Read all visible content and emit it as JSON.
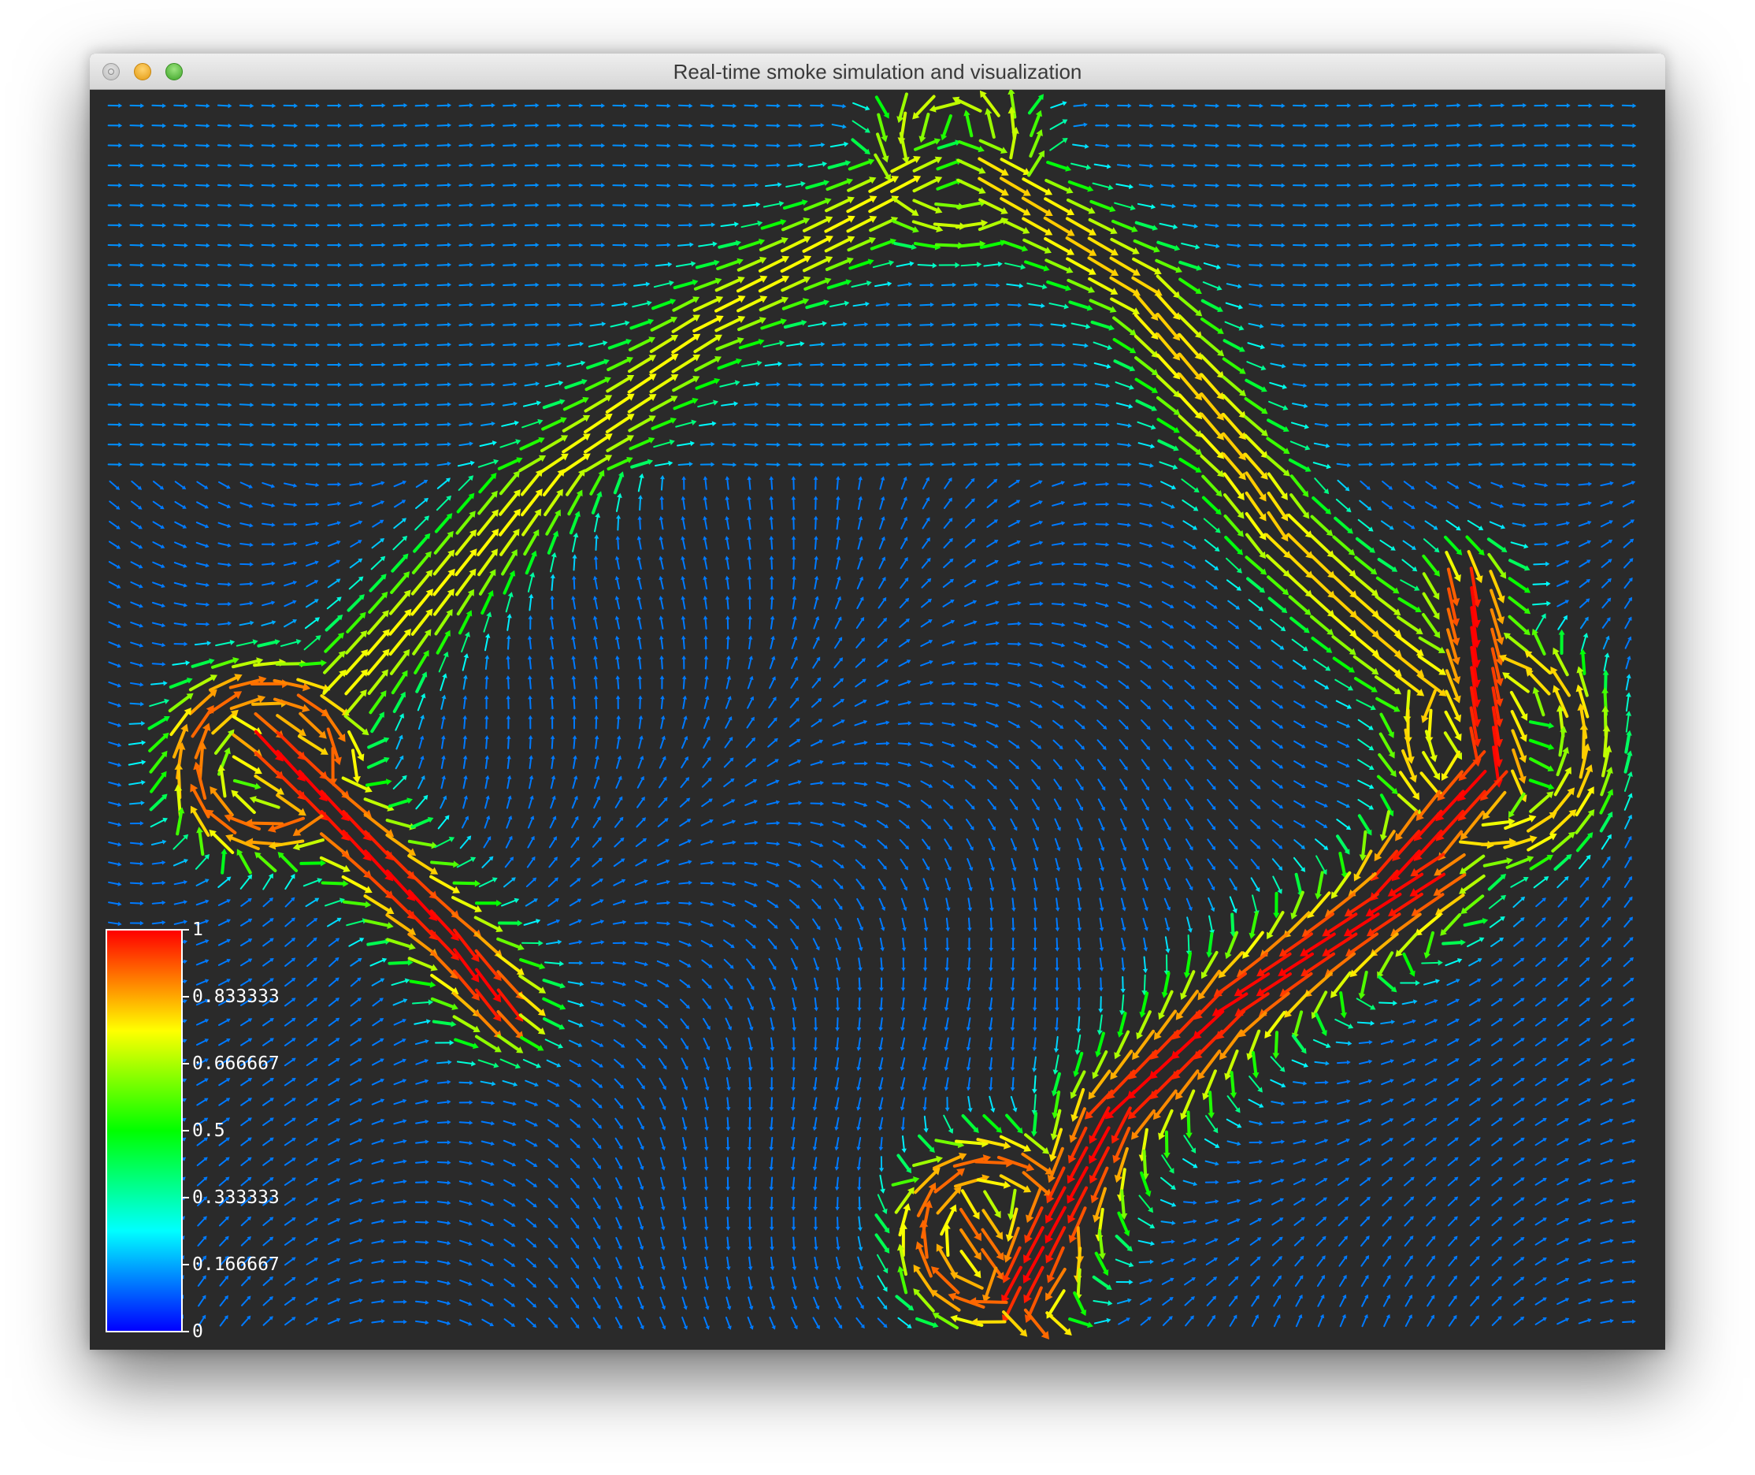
{
  "window": {
    "title": "Real-time smoke simulation and visualization",
    "traffic_lights": [
      "close-button",
      "minimize-button",
      "maximize-button"
    ]
  },
  "visualization": {
    "type": "vector-field-glyphs",
    "background_color": "#2a2a2a",
    "colormap": "rainbow",
    "colormap_colors": [
      "#0000ff",
      "#00ffff",
      "#00ff00",
      "#ffff00",
      "#ff0000"
    ]
  },
  "colorbar": {
    "ticks": [
      {
        "value": 1,
        "label": "1"
      },
      {
        "value": 0.833333,
        "label": "0.833333"
      },
      {
        "value": 0.666667,
        "label": "0.666667"
      },
      {
        "value": 0.5,
        "label": "0.5"
      },
      {
        "value": 0.333333,
        "label": "0.333333"
      },
      {
        "value": 0.166667,
        "label": "0.166667"
      },
      {
        "value": 0,
        "label": "0"
      }
    ]
  }
}
